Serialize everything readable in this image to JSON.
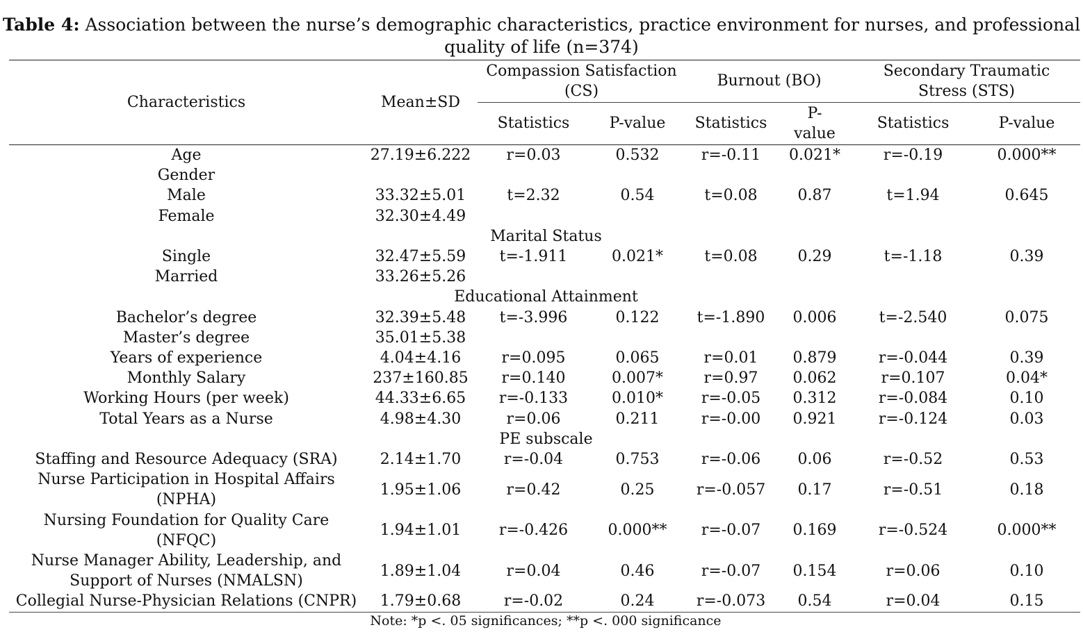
{
  "caption": {
    "label": "Table 4:",
    "line1": "Association between the nurse’s demographic characteristics, practice environment for nurses, and professional",
    "line2": "quality of life (n=374)"
  },
  "header": {
    "characteristics": "Characteristics",
    "mean_sd": "Mean±SD",
    "cs_line1": "Compassion Satisfaction",
    "cs_line2": "(CS)",
    "bo": "Burnout (BO)",
    "sts_line1": "Secondary Traumatic",
    "sts_line2": "Stress (STS)",
    "statistics": "Statistics",
    "pvalue": "P-value",
    "pvalue_split1": "P-",
    "pvalue_split2": "value"
  },
  "rows": [
    {
      "type": "data",
      "c": [
        "Age",
        "27.19±6.222",
        "r=0.03",
        "0.532",
        "r=-0.11",
        "0.021*",
        "r=-0.19",
        "0.000**"
      ]
    },
    {
      "type": "data",
      "c": [
        "Gender",
        "",
        "",
        "",
        "",
        "",
        "",
        ""
      ]
    },
    {
      "type": "data",
      "c": [
        "Male",
        "33.32±5.01",
        "t=2.32",
        "0.54",
        "t=0.08",
        "0.87",
        "t=1.94",
        "0.645"
      ]
    },
    {
      "type": "data",
      "c": [
        "Female",
        "32.30±4.49",
        "",
        "",
        "",
        "",
        "",
        ""
      ]
    },
    {
      "type": "section",
      "label": "Marital Status"
    },
    {
      "type": "data",
      "c": [
        "Single",
        "32.47±5.59",
        "t=-1.911",
        "0.021*",
        "t=0.08",
        "0.29",
        "t=-1.18",
        "0.39"
      ]
    },
    {
      "type": "data",
      "c": [
        "Married",
        "33.26±5.26",
        "",
        "",
        "",
        "",
        "",
        ""
      ]
    },
    {
      "type": "section",
      "label": "Educational Attainment"
    },
    {
      "type": "data",
      "c": [
        "Bachelor’s degree",
        "32.39±5.48",
        "t=-3.996",
        "0.122",
        "t=-1.890",
        "0.006",
        "t=-2.540",
        "0.075"
      ]
    },
    {
      "type": "data",
      "c": [
        "Master’s degree",
        "35.01±5.38",
        "",
        "",
        "",
        "",
        "",
        ""
      ]
    },
    {
      "type": "data",
      "c": [
        "Years of experience",
        "4.04±4.16",
        "r=0.095",
        "0.065",
        "r=0.01",
        "0.879",
        "r=-0.044",
        "0.39"
      ]
    },
    {
      "type": "data",
      "c": [
        "Monthly Salary",
        "237±160.85",
        "r=0.140",
        "0.007*",
        "r=0.97",
        "0.062",
        "r=0.107",
        "0.04*"
      ]
    },
    {
      "type": "data",
      "c": [
        "Working Hours (per week)",
        "44.33±6.65",
        "r=-0.133",
        "0.010*",
        "r=-0.05",
        "0.312",
        "r=-0.084",
        "0.10"
      ]
    },
    {
      "type": "data",
      "c": [
        "Total Years as a Nurse",
        "4.98±4.30",
        "r=0.06",
        "0.211",
        "r=-0.00",
        "0.921",
        "r=-0.124",
        "0.03"
      ]
    },
    {
      "type": "section",
      "label": "PE subscale"
    },
    {
      "type": "data",
      "c": [
        "Staffing and Resource Adequacy (SRA)",
        "2.14±1.70",
        "r=-0.04",
        "0.753",
        "r=-0.06",
        "0.06",
        "r=-0.52",
        "0.53"
      ]
    },
    {
      "type": "data2",
      "c": [
        "Nurse Participation in Hospital Affairs",
        "(NPHA)",
        "1.95±1.06",
        "r=0.42",
        "0.25",
        "r=-0.057",
        "0.17",
        "r=-0.51",
        "0.18"
      ]
    },
    {
      "type": "data2",
      "c": [
        "Nursing Foundation for Quality Care",
        "(NFQC)",
        "1.94±1.01",
        "r=-0.426",
        "0.000**",
        "r=-0.07",
        "0.169",
        "r=-0.524",
        "0.000**"
      ]
    },
    {
      "type": "data2",
      "c": [
        "Nurse Manager Ability, Leadership, and",
        "Support of Nurses (NMALSN)",
        "1.89±1.04",
        "r=0.04",
        "0.46",
        "r=-0.07",
        "0.154",
        "r=0.06",
        "0.10"
      ]
    },
    {
      "type": "data",
      "c": [
        "Collegial Nurse-Physician Relations (CNPR)",
        "1.79±0.68",
        "r=-0.02",
        "0.24",
        "r=-0.073",
        "0.54",
        "r=0.04",
        "0.15"
      ]
    }
  ],
  "note": "Note: *p <. 05 significances; **p <. 000 significance"
}
